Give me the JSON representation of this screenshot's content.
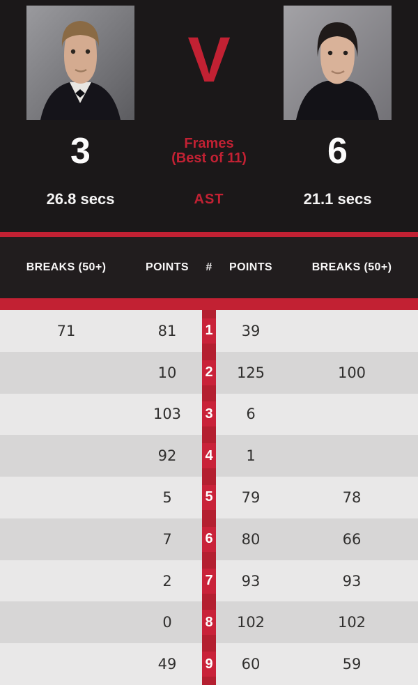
{
  "colors": {
    "accent": "#c22133",
    "background": "#1b1819",
    "header_bg": "#211d1e",
    "row_light": "#e9e8e8",
    "row_dark": "#d7d6d6",
    "mid_column": "#b41f30",
    "frame_chip": "#c92239"
  },
  "match": {
    "versus": "V",
    "frames_label_line1": "Frames",
    "frames_label_line2": "(Best of 11)",
    "ast_label": "AST",
    "left": {
      "frames": "3",
      "ast": "26.8 secs"
    },
    "right": {
      "frames": "6",
      "ast": "21.1 secs"
    }
  },
  "table": {
    "columns": [
      "BREAKS (50+)",
      "POINTS",
      "#",
      "POINTS",
      "BREAKS (50+)"
    ],
    "rows": [
      {
        "frame": "1",
        "left_breaks": "71",
        "left_points": "81",
        "right_points": "39",
        "right_breaks": ""
      },
      {
        "frame": "2",
        "left_breaks": "",
        "left_points": "10",
        "right_points": "125",
        "right_breaks": "100"
      },
      {
        "frame": "3",
        "left_breaks": "",
        "left_points": "103",
        "right_points": "6",
        "right_breaks": ""
      },
      {
        "frame": "4",
        "left_breaks": "",
        "left_points": "92",
        "right_points": "1",
        "right_breaks": ""
      },
      {
        "frame": "5",
        "left_breaks": "",
        "left_points": "5",
        "right_points": "79",
        "right_breaks": "78"
      },
      {
        "frame": "6",
        "left_breaks": "",
        "left_points": "7",
        "right_points": "80",
        "right_breaks": "66"
      },
      {
        "frame": "7",
        "left_breaks": "",
        "left_points": "2",
        "right_points": "93",
        "right_breaks": "93"
      },
      {
        "frame": "8",
        "left_breaks": "",
        "left_points": "0",
        "right_points": "102",
        "right_breaks": "102"
      },
      {
        "frame": "9",
        "left_breaks": "",
        "left_points": "49",
        "right_points": "60",
        "right_breaks": "59"
      }
    ]
  }
}
